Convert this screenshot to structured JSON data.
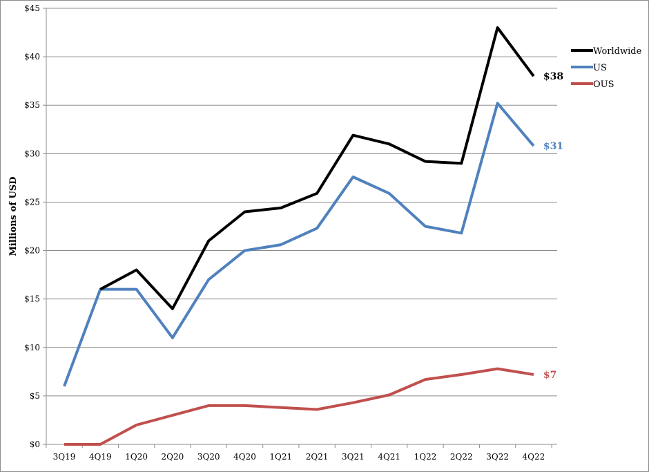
{
  "chart_data": {
    "type": "line",
    "title": "",
    "xlabel": "",
    "ylabel": "Millions of USD",
    "ylim": [
      0,
      45
    ],
    "y_ticks": [
      0,
      5,
      10,
      15,
      20,
      25,
      30,
      35,
      40,
      45
    ],
    "y_tick_labels": [
      "$0",
      "$5",
      "$10",
      "$15",
      "$20",
      "$25",
      "$30",
      "$35",
      "$40",
      "$45"
    ],
    "grid": true,
    "legend_position": "top-right",
    "categories": [
      "3Q19",
      "4Q19",
      "1Q20",
      "2Q20",
      "3Q20",
      "4Q20",
      "1Q21",
      "2Q21",
      "3Q21",
      "4Q21",
      "1Q22",
      "2Q22",
      "3Q22",
      "4Q22"
    ],
    "series": [
      {
        "name": "Worldwide",
        "color": "#000000",
        "values": [
          null,
          16,
          18,
          14,
          21,
          24,
          24.4,
          25.9,
          31.9,
          31,
          29.2,
          29,
          43,
          38
        ],
        "end_label": "$38"
      },
      {
        "name": "US",
        "color": "#4f81bd",
        "values": [
          6,
          16,
          16,
          11,
          17,
          20,
          20.6,
          22.3,
          27.6,
          25.9,
          22.5,
          21.8,
          35.2,
          30.8
        ],
        "end_label": "$31"
      },
      {
        "name": "OUS",
        "color": "#c0504d",
        "values": [
          0,
          0,
          2,
          3,
          4,
          4,
          3.8,
          3.6,
          4.3,
          5.1,
          6.7,
          7.2,
          7.8,
          7.2
        ],
        "end_label": "$7"
      }
    ]
  }
}
